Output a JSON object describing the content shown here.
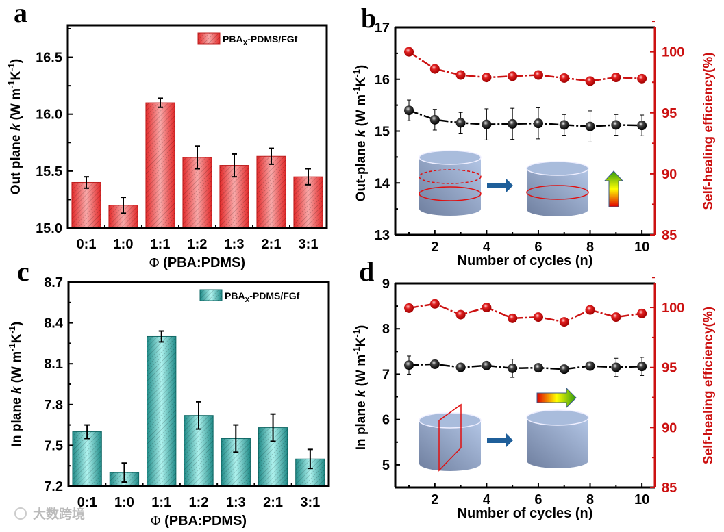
{
  "chart_data": [
    {
      "panel": "a",
      "type": "bar",
      "title": "",
      "categories": [
        "0:1",
        "1:0",
        "1:1",
        "1:2",
        "1:3",
        "2:1",
        "3:1"
      ],
      "values": [
        15.4,
        15.2,
        16.1,
        15.62,
        15.55,
        15.63,
        15.45
      ],
      "errors": [
        0.05,
        0.07,
        0.04,
        0.1,
        0.1,
        0.07,
        0.07
      ],
      "xlabel": "Φ (PBA:PDMS)",
      "ylabel": {
        "pre": "Out plane ",
        "italic": "k",
        "post": " (W m",
        "sup1": "-1",
        "mid": "K",
        "sup2": "-1",
        "end": ")"
      },
      "ylim": [
        15.0,
        16.78
      ],
      "yticks": [
        "15.0",
        "15.5",
        "16.0",
        "16.5"
      ],
      "legend": {
        "main": "PBA",
        "sub": "X",
        "rest": "-PDMS/FGf",
        "position": "top-right"
      },
      "color": "#e53935"
    },
    {
      "panel": "b",
      "type": "line",
      "x": [
        1,
        2,
        3,
        4,
        5,
        6,
        7,
        8,
        9,
        10
      ],
      "series": [
        {
          "name": "Out-plane k",
          "axis": "left",
          "values": [
            15.4,
            15.22,
            15.16,
            15.13,
            15.14,
            15.15,
            15.12,
            15.09,
            15.12,
            15.11
          ],
          "errors": [
            0.2,
            0.2,
            0.2,
            0.3,
            0.3,
            0.3,
            0.2,
            0.3,
            0.2,
            0.2
          ],
          "color": "#000000"
        },
        {
          "name": "Self-healing efficiency",
          "axis": "right",
          "values": [
            100,
            98.6,
            98.1,
            97.9,
            98.0,
            98.1,
            97.85,
            97.6,
            97.9,
            97.8
          ],
          "color": "#cc1111"
        }
      ],
      "xlabel": "Number of cycles (n)",
      "ylabel": {
        "pre": "Out-plane ",
        "italic": "k",
        "post": " (W m",
        "sup1": "-1",
        "mid": "K",
        "sup2": "-1",
        "end": ")"
      },
      "y2label": "Self-healing efficiency(%)",
      "xlim": [
        0.47,
        10.5
      ],
      "xticks": [
        "2",
        "4",
        "6",
        "8",
        "10"
      ],
      "ylim": [
        13,
        17
      ],
      "yticks": [
        "13",
        "14",
        "15",
        "16",
        "17"
      ],
      "y2lim": [
        85,
        102
      ],
      "y2ticks": [
        "85",
        "90",
        "95",
        "100"
      ]
    },
    {
      "panel": "c",
      "type": "bar",
      "categories": [
        "0:1",
        "1:0",
        "1:1",
        "1:2",
        "1:3",
        "2:1",
        "3:1"
      ],
      "values": [
        7.6,
        7.3,
        8.3,
        7.72,
        7.55,
        7.63,
        7.4
      ],
      "errors": [
        0.05,
        0.07,
        0.04,
        0.1,
        0.1,
        0.1,
        0.07
      ],
      "xlabel": "Φ (PBA:PDMS)",
      "ylabel": {
        "pre": "In plane ",
        "italic": "k",
        "post": " (W m",
        "sup1": "-1",
        "mid": "K",
        "sup2": "-1",
        "end": ")"
      },
      "ylim": [
        7.2,
        8.7
      ],
      "yticks": [
        "7.2",
        "7.5",
        "7.8",
        "8.1",
        "8.4",
        "8.7"
      ],
      "legend": {
        "main": "PBA",
        "sub": "X",
        "rest": "-PDMS/FGf",
        "position": "top-right"
      },
      "color": "#2aa39f"
    },
    {
      "panel": "d",
      "type": "line",
      "x": [
        1,
        2,
        3,
        4,
        5,
        6,
        7,
        8,
        9,
        10
      ],
      "series": [
        {
          "name": "In plane k",
          "axis": "left",
          "values": [
            7.2,
            7.22,
            7.15,
            7.19,
            7.13,
            7.14,
            7.11,
            7.18,
            7.15,
            7.17
          ],
          "errors": [
            0.2,
            0,
            0,
            0,
            0.2,
            0,
            0,
            0,
            0.2,
            0.2
          ],
          "color": "#000000"
        },
        {
          "name": "Self-healing efficiency",
          "axis": "right",
          "values": [
            99.95,
            100.3,
            99.4,
            100.0,
            99.1,
            99.2,
            98.8,
            99.8,
            99.2,
            99.5
          ],
          "color": "#cc1111"
        }
      ],
      "xlabel": "Number of cycles (n)",
      "ylabel": {
        "pre": "In plane ",
        "italic": "k",
        "post": " (W m",
        "sup1": "-1",
        "mid": "K",
        "sup2": "-1",
        "end": ")"
      },
      "y2label": "Self-healing efficiency(%)",
      "xlim": [
        0.47,
        10.5
      ],
      "xticks": [
        "2",
        "4",
        "6",
        "8",
        "10"
      ],
      "ylim": [
        4.5,
        9
      ],
      "yticks": [
        "5",
        "6",
        "7",
        "8",
        "9"
      ],
      "y2lim": [
        85,
        102
      ],
      "y2ticks": [
        "85",
        "90",
        "95",
        "100"
      ]
    }
  ],
  "panel_labels": [
    "a",
    "b",
    "c",
    "d"
  ],
  "watermark": "大数跨境"
}
